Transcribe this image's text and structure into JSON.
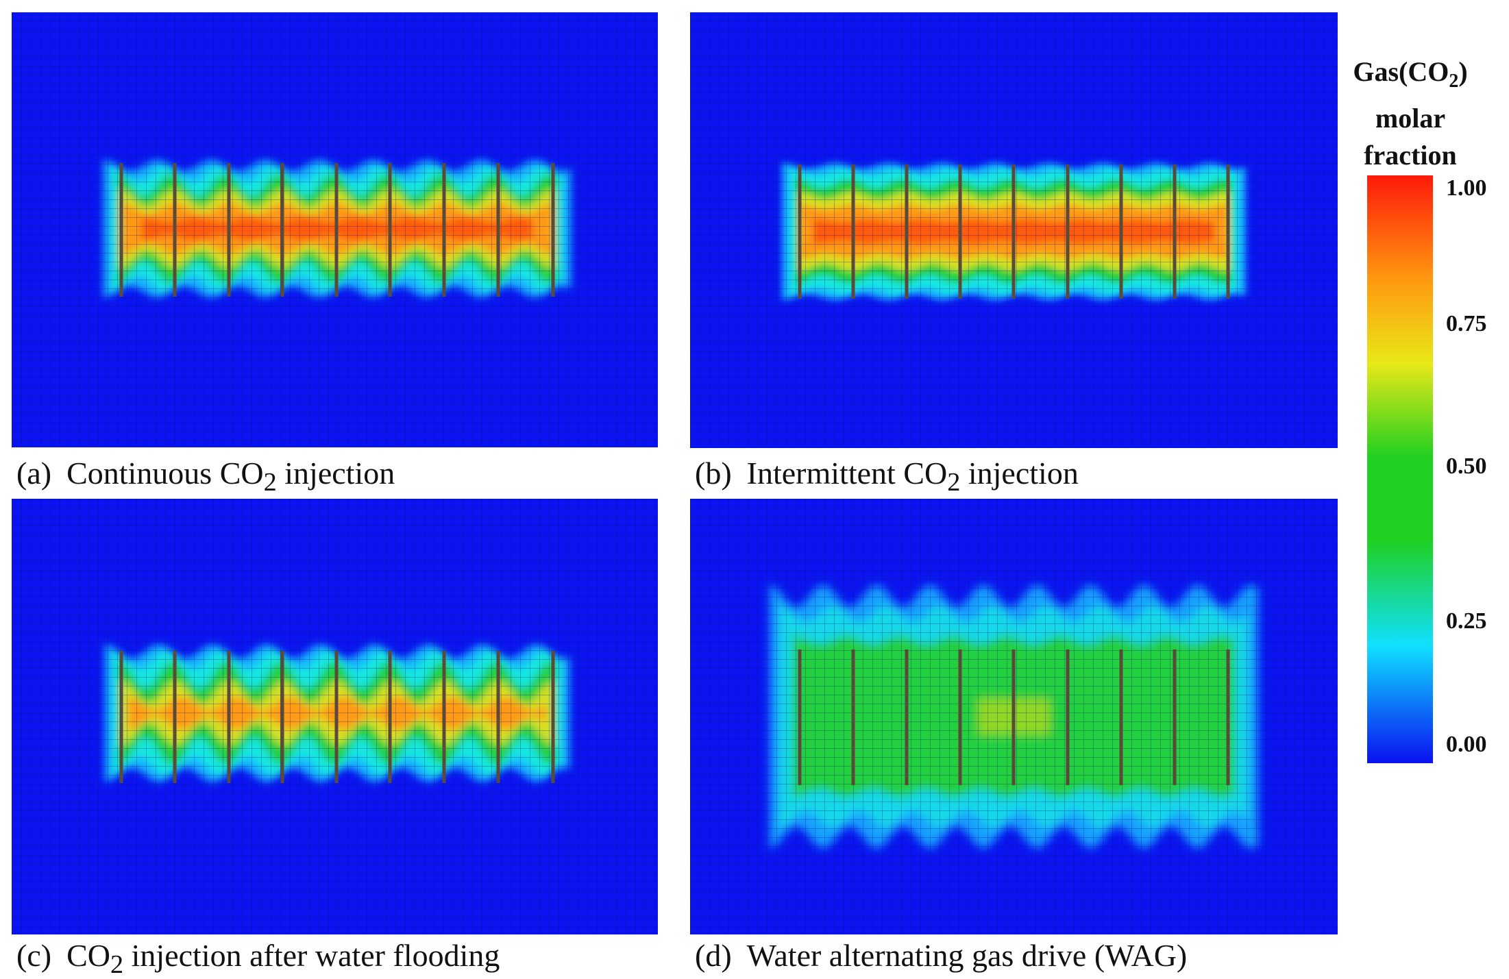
{
  "panels": [
    {
      "letter": "(a)",
      "pre": "Continuous CO",
      "sub": "2",
      "post": " injection"
    },
    {
      "letter": "(b)",
      "pre": "Intermittent CO",
      "sub": "2",
      "post": " injection"
    },
    {
      "letter": "(c)",
      "pre": "CO",
      "sub": "2",
      "post": " injection after water flooding"
    },
    {
      "letter": "(d)",
      "pre": "Water alternating gas drive (WAG)",
      "sub": "",
      "post": ""
    }
  ],
  "colorbar": {
    "title_line1_pre": "Gas(CO",
    "title_line1_sub": "2",
    "title_line1_post": ")",
    "title_line2": "molar",
    "title_line3": "fraction",
    "ticks": [
      "1.00",
      "0.75",
      "0.50",
      "0.25",
      "0.00"
    ],
    "colors": [
      "#ff1a0a",
      "#ff9a10",
      "#e8e818",
      "#20d020",
      "#10e0ff",
      "#0a10f0"
    ]
  }
}
